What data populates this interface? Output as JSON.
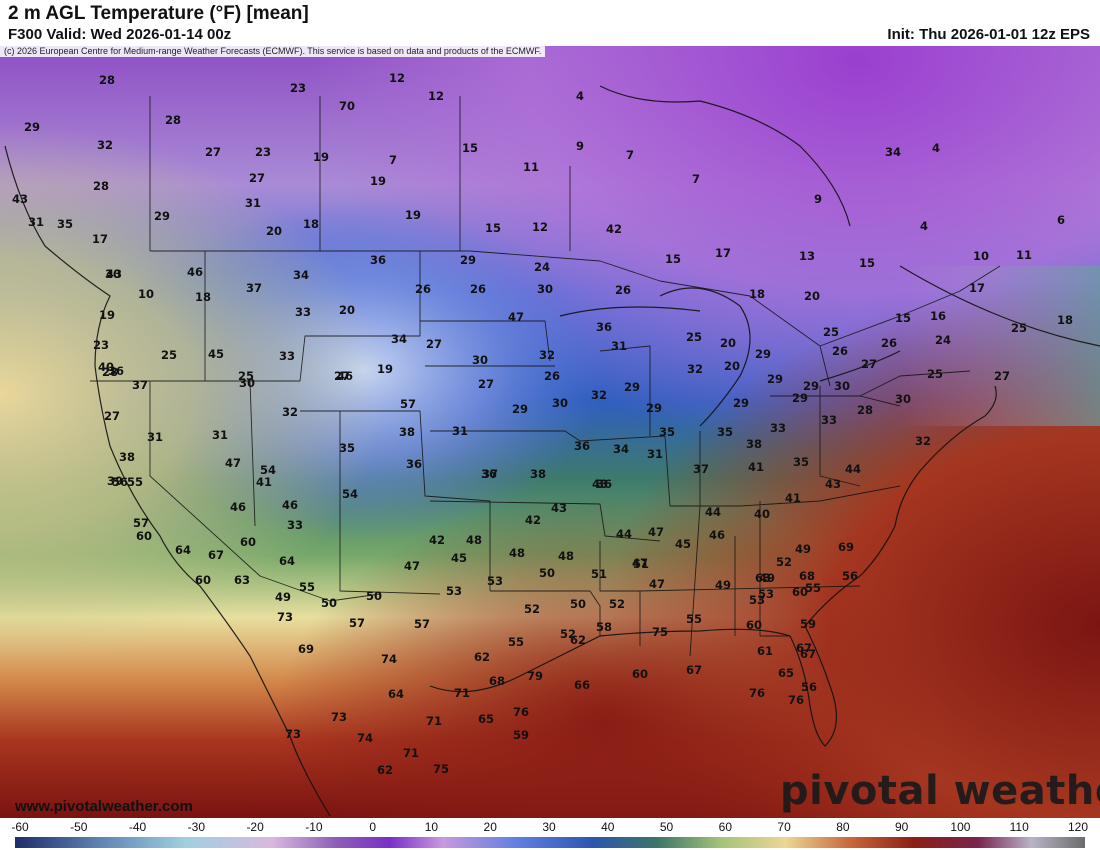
{
  "header": {
    "title": "2 m AGL Temperature (°F) [mean]",
    "valid": "F300 Valid: Wed 2026-01-14 00z",
    "init": "Init: Thu 2026-01-01 12z EPS",
    "copyright": "(c) 2026 European Centre for Medium-range Weather Forecasts (ECMWF). This service is based on data and products of the ECMWF."
  },
  "footer": {
    "website": "www.pivotalweather.com",
    "brand": "pivotal weather"
  },
  "colorbar": {
    "units": "°F",
    "ticks": [
      "-60",
      "-50",
      "-40",
      "-30",
      "-20",
      "-10",
      "0",
      "10",
      "20",
      "30",
      "40",
      "50",
      "60",
      "70",
      "80",
      "90",
      "100",
      "110",
      "120"
    ]
  },
  "temperatures": [
    "28",
    "12",
    "23",
    "70",
    "12",
    "4",
    "29",
    "28",
    "32",
    "27",
    "23",
    "19",
    "7",
    "15",
    "9",
    "7",
    "28",
    "27",
    "19",
    "11",
    "7",
    "29",
    "31",
    "19",
    "9",
    "43",
    "31",
    "20",
    "18",
    "15",
    "12",
    "42",
    "35",
    "34",
    "4",
    "4",
    "6",
    "17",
    "43",
    "46",
    "34",
    "36",
    "29",
    "24",
    "17",
    "15",
    "13",
    "15",
    "10",
    "11",
    "10",
    "18",
    "37",
    "33",
    "26",
    "26",
    "30",
    "26",
    "18",
    "20",
    "17",
    "15",
    "16",
    "19",
    "20",
    "47",
    "36",
    "25",
    "18",
    "23",
    "25",
    "45",
    "33",
    "34",
    "27",
    "30",
    "32",
    "31",
    "27",
    "19",
    "20",
    "29",
    "26",
    "25",
    "24",
    "26",
    "27",
    "25",
    "30",
    "28",
    "46",
    "32",
    "20",
    "26",
    "29",
    "29",
    "27",
    "29",
    "30",
    "25",
    "25",
    "27",
    "32",
    "57",
    "29",
    "30",
    "32",
    "29",
    "29",
    "28",
    "30",
    "29",
    "27",
    "31",
    "31",
    "38",
    "31",
    "35",
    "35",
    "33",
    "33",
    "32",
    "30",
    "40",
    "36",
    "37",
    "36",
    "35",
    "36",
    "34",
    "31",
    "38",
    "54",
    "36",
    "38",
    "39",
    "38",
    "37",
    "36",
    "37",
    "35",
    "41",
    "44",
    "56",
    "55",
    "47",
    "43",
    "44",
    "40",
    "41",
    "43",
    "57",
    "54",
    "33",
    "41",
    "46",
    "46",
    "43",
    "42",
    "44",
    "47",
    "60",
    "64",
    "60",
    "42",
    "45",
    "48",
    "48",
    "45",
    "46",
    "47",
    "48",
    "67",
    "64",
    "47",
    "50",
    "51",
    "51",
    "47",
    "49",
    "49",
    "49",
    "52",
    "68",
    "63",
    "60",
    "55",
    "50",
    "50",
    "53",
    "53",
    "52",
    "50",
    "52",
    "53",
    "55",
    "56",
    "69",
    "53",
    "49",
    "57",
    "57",
    "55",
    "52",
    "58",
    "75",
    "55",
    "60",
    "59",
    "63",
    "60",
    "67",
    "65",
    "76",
    "56",
    "66",
    "60",
    "67",
    "61",
    "69",
    "74",
    "64",
    "62",
    "68",
    "71",
    "79",
    "76",
    "62",
    "67",
    "73",
    "73",
    "71",
    "65",
    "59",
    "76",
    "74",
    "73",
    "71",
    "75",
    "62"
  ]
}
